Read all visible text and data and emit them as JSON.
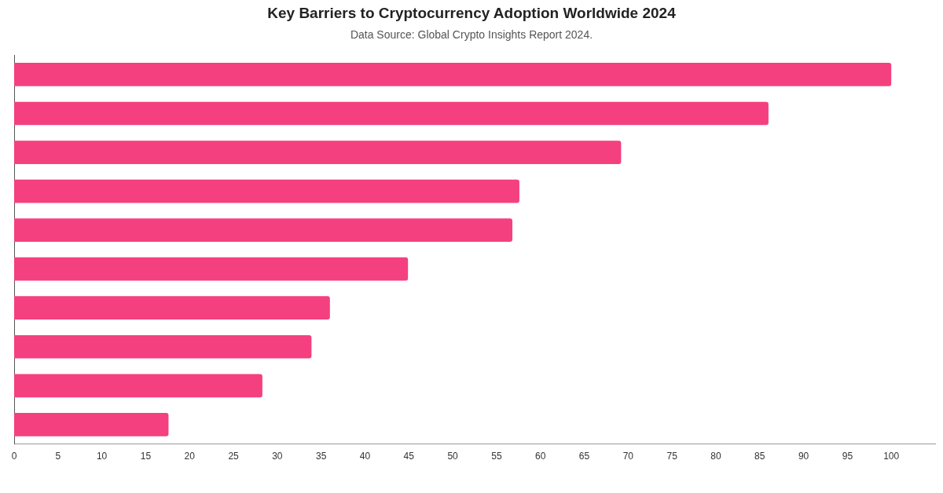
{
  "chart_data": {
    "type": "bar",
    "orientation": "horizontal",
    "title": "Key Barriers to Cryptocurrency Adoption Worldwide 2024",
    "subtitle": "Data Source: Global Crypto Insights Report 2024.",
    "categories": [
      null,
      null,
      null,
      null,
      null,
      null,
      null,
      null,
      null,
      null
    ],
    "values": [
      100,
      86,
      69.2,
      57.6,
      56.8,
      44.9,
      36,
      33.9,
      28.3,
      17.6
    ],
    "color": "#f4407f",
    "xlim": [
      0,
      105
    ],
    "xticks": [
      0,
      5,
      10,
      15,
      20,
      25,
      30,
      35,
      40,
      45,
      50,
      55,
      60,
      65,
      70,
      75,
      80,
      85,
      90,
      95,
      100
    ],
    "grid": false,
    "legend": false
  }
}
